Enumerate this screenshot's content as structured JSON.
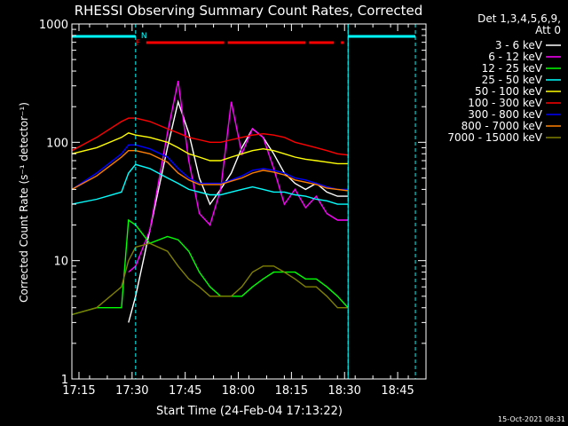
{
  "chart_data": {
    "type": "line",
    "title": "RHESSI Observing Summary Count Rates, Corrected",
    "xlabel": "Start Time (24-Feb-04 17:13:22)",
    "ylabel": "Corrected Count Rate (s⁻¹ detector⁻¹)",
    "yscale": "log",
    "ylim": [
      1,
      1000
    ],
    "xlim": [
      "17:13",
      "18:53"
    ],
    "x_ticks": [
      "17:15",
      "17:30",
      "17:45",
      "18:00",
      "18:15",
      "18:30",
      "18:45"
    ],
    "y_ticks": [
      "1",
      "10",
      "100",
      "1000"
    ],
    "grid": false,
    "legend_position": "right",
    "legend_header": [
      "Det 1,3,4,5,6,9,",
      "Att 0"
    ],
    "footer_timestamp": "15-Oct-2021 08:31",
    "flags": {
      "night_label": "N",
      "flare_label": "F",
      "night_color": "#00ffff",
      "flare_color": "#ff0000",
      "night_intervals": [
        [
          "17:13",
          "17:31"
        ],
        [
          "18:31",
          "18:50"
        ]
      ],
      "flare_intervals": [
        [
          "17:34",
          "17:56"
        ],
        [
          "17:57",
          "18:19"
        ],
        [
          "18:20",
          "18:27"
        ],
        [
          "18:29",
          "18:29"
        ]
      ]
    },
    "dashed_markers": [
      "17:31",
      "18:31",
      "18:50"
    ],
    "solid_marker": "18:31",
    "x": [
      "17:13",
      "17:20",
      "17:27",
      "17:29",
      "17:31",
      "17:35",
      "17:40",
      "17:43",
      "17:46",
      "17:49",
      "17:52",
      "17:55",
      "17:58",
      "18:01",
      "18:04",
      "18:07",
      "18:10",
      "18:13",
      "18:16",
      "18:19",
      "18:22",
      "18:25",
      "18:28",
      "18:31"
    ],
    "series": [
      {
        "name": "3 - 6 keV",
        "color": "#ffffff",
        "values": [
          null,
          null,
          null,
          3,
          5,
          18,
          90,
          220,
          120,
          50,
          30,
          40,
          55,
          90,
          130,
          110,
          80,
          55,
          45,
          40,
          45,
          38,
          35,
          35
        ]
      },
      {
        "name": "6 - 12 keV",
        "color": "#ff00ff",
        "values": [
          null,
          null,
          null,
          8,
          9,
          18,
          120,
          330,
          70,
          25,
          20,
          40,
          220,
          80,
          130,
          110,
          60,
          30,
          40,
          28,
          35,
          25,
          22,
          22
        ]
      },
      {
        "name": "12 - 25 keV",
        "color": "#00ff00",
        "values": [
          3.5,
          4,
          4,
          22,
          20,
          14,
          16,
          15,
          12,
          8,
          6,
          5,
          5,
          5,
          6,
          7,
          8,
          8,
          8,
          7,
          7,
          6,
          5,
          4
        ]
      },
      {
        "name": "25 - 50 keV",
        "color": "#00ffff",
        "values": [
          30,
          33,
          38,
          55,
          65,
          60,
          50,
          45,
          40,
          38,
          36,
          36,
          38,
          40,
          42,
          40,
          38,
          38,
          36,
          35,
          33,
          32,
          30,
          30
        ]
      },
      {
        "name": "50 - 100 keV",
        "color": "#ffff00",
        "values": [
          80,
          90,
          110,
          120,
          115,
          110,
          100,
          90,
          80,
          75,
          70,
          70,
          75,
          80,
          85,
          88,
          85,
          80,
          75,
          72,
          70,
          68,
          66,
          66
        ]
      },
      {
        "name": "100 - 300 keV",
        "color": "#ff0000",
        "values": [
          85,
          110,
          150,
          160,
          160,
          150,
          130,
          120,
          110,
          105,
          100,
          100,
          105,
          110,
          115,
          118,
          115,
          110,
          100,
          95,
          90,
          85,
          80,
          78
        ]
      },
      {
        "name": "300 - 800 keV",
        "color": "#0000ff",
        "values": [
          40,
          55,
          80,
          95,
          95,
          88,
          75,
          60,
          50,
          45,
          45,
          45,
          48,
          52,
          58,
          60,
          58,
          55,
          50,
          48,
          45,
          42,
          40,
          40
        ]
      },
      {
        "name": "800 - 7000 keV",
        "color": "#ff8000",
        "values": [
          40,
          52,
          75,
          85,
          85,
          80,
          68,
          55,
          48,
          44,
          44,
          44,
          47,
          50,
          55,
          58,
          56,
          53,
          48,
          46,
          44,
          41,
          40,
          39
        ]
      },
      {
        "name": "7000 - 15000 keV",
        "color": "#808000",
        "values": [
          3.5,
          4,
          6,
          10,
          13,
          14,
          12,
          9,
          7,
          6,
          5,
          5,
          5,
          6,
          8,
          9,
          9,
          8,
          7,
          6,
          6,
          5,
          4,
          4
        ]
      }
    ]
  }
}
